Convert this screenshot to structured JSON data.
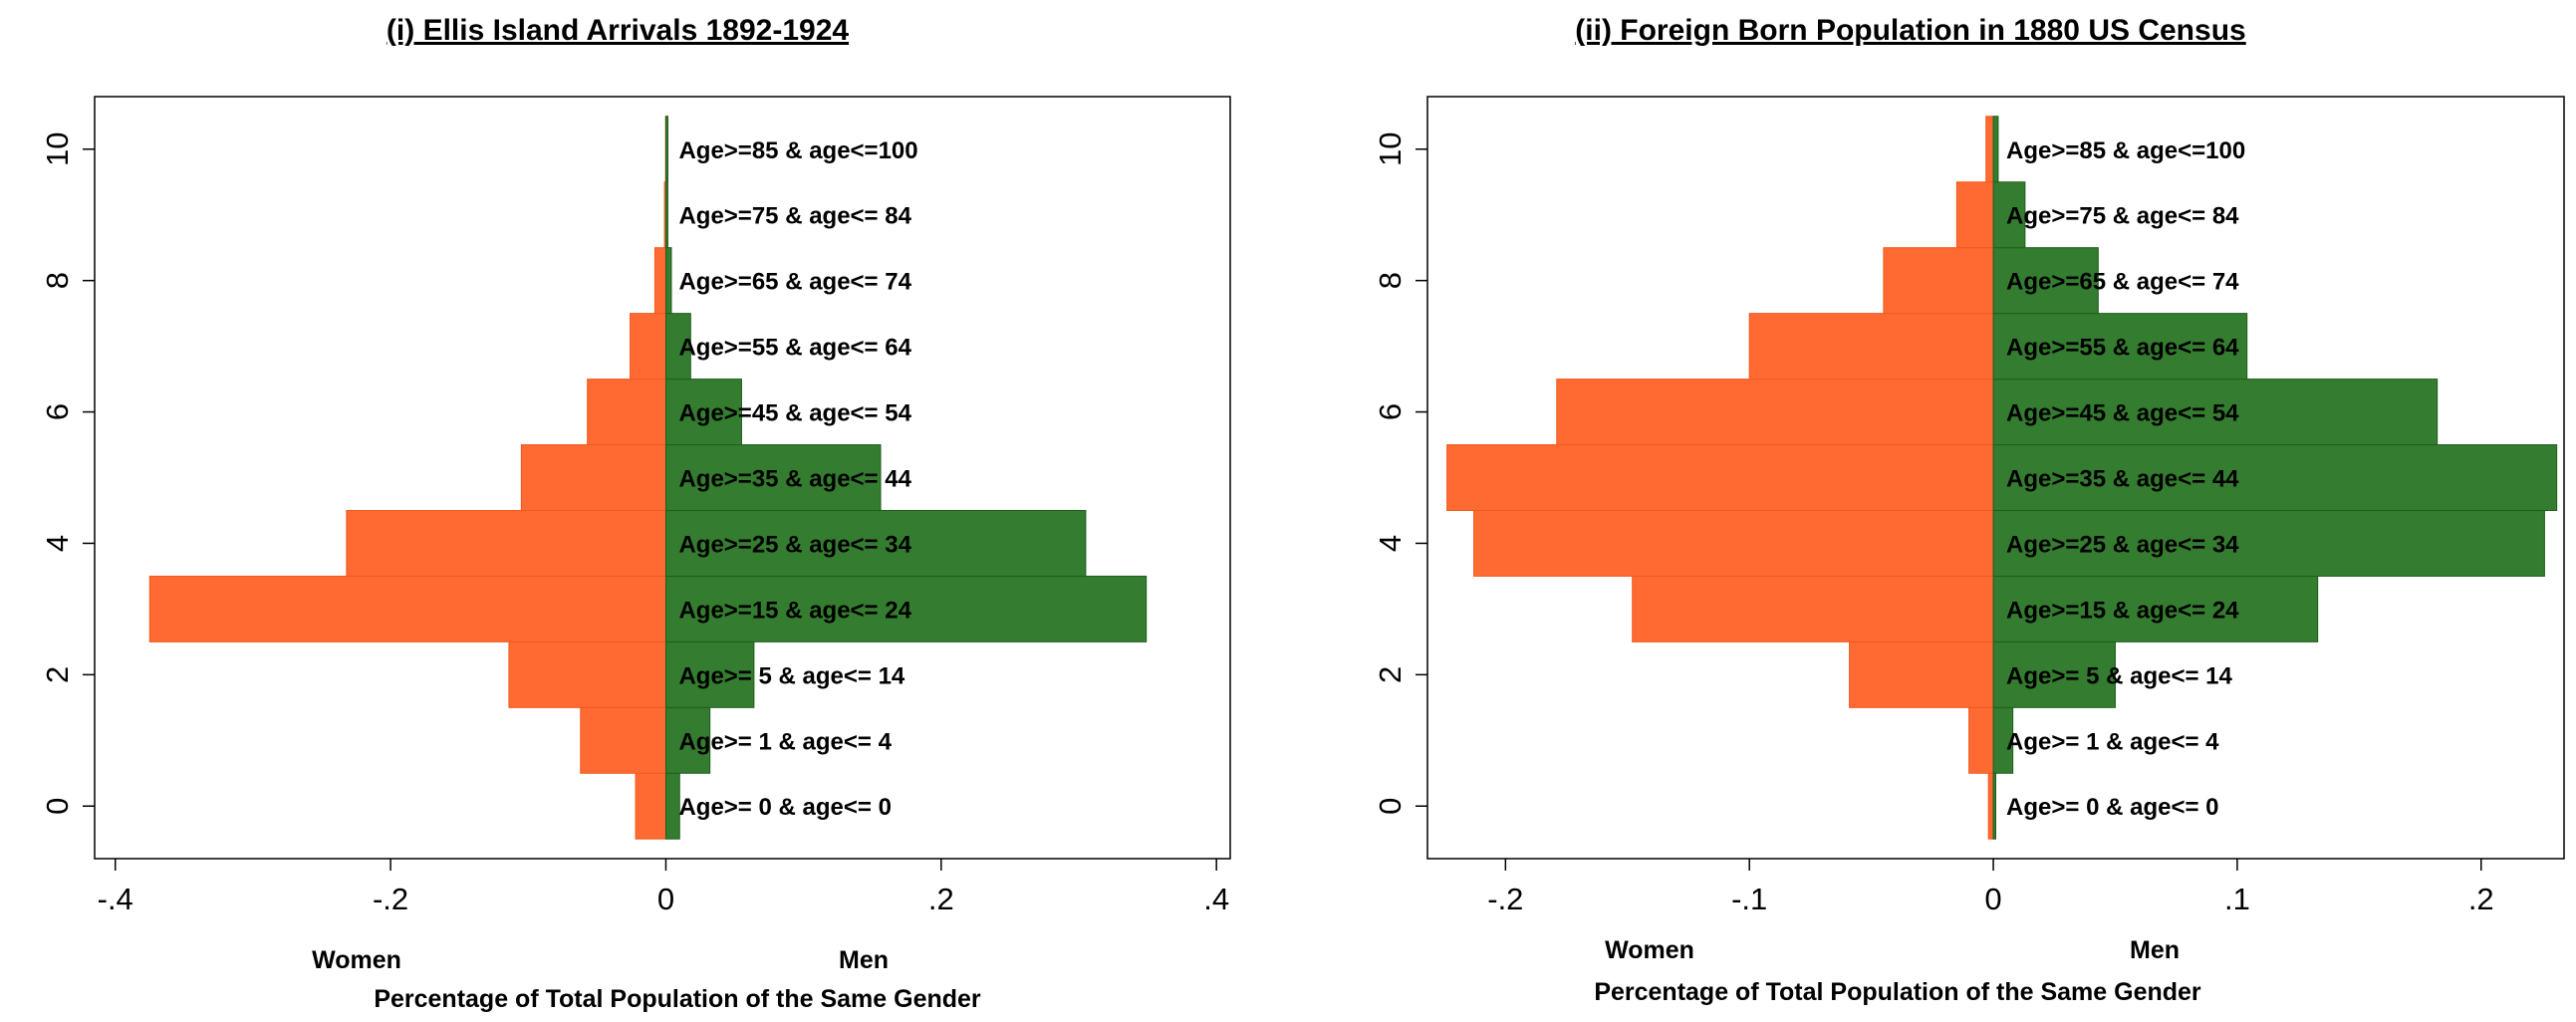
{
  "colors": {
    "women": "#ff6a33",
    "men": "#347c2f",
    "women_edge": "#f05a1e",
    "men_edge": "#1f5e1d"
  },
  "chart_data": [
    {
      "type": "bar",
      "orientation": "horizontal",
      "title": "(i) Ellis Island Arrivals 1892-1924",
      "xlabel": "Percentage of Total Population of the Same Gender",
      "women_label": "Women",
      "men_label": "Men",
      "xlim": [
        -0.415,
        0.41
      ],
      "ylim": [
        -0.8,
        10.8
      ],
      "xticks": [
        -0.4,
        -0.2,
        0,
        0.2,
        0.4
      ],
      "xtick_labels": [
        "-.4",
        "-.2",
        "0",
        ".2",
        ".4"
      ],
      "yticks": [
        0,
        2,
        4,
        6,
        8,
        10
      ],
      "ytick_labels": [
        "0",
        "2",
        "4",
        "6",
        "8",
        "10"
      ],
      "categories": [
        {
          "y": 0,
          "label": "Age>= 0 & age<=  0",
          "women": -0.022,
          "men": 0.01
        },
        {
          "y": 1,
          "label": "Age>= 1 & age<=  4",
          "women": -0.062,
          "men": 0.032
        },
        {
          "y": 2,
          "label": "Age>= 5 & age<= 14",
          "women": -0.114,
          "men": 0.064
        },
        {
          "y": 3,
          "label": "Age>=15 & age<= 24",
          "women": -0.375,
          "men": 0.349
        },
        {
          "y": 4,
          "label": "Age>=25 & age<= 34",
          "women": -0.232,
          "men": 0.305
        },
        {
          "y": 5,
          "label": "Age>=35 & age<= 44",
          "women": -0.105,
          "men": 0.156
        },
        {
          "y": 6,
          "label": "Age>=45 & age<= 54",
          "women": -0.057,
          "men": 0.055
        },
        {
          "y": 7,
          "label": "Age>=55 & age<= 64",
          "women": -0.026,
          "men": 0.018
        },
        {
          "y": 8,
          "label": "Age>=65 & age<= 74",
          "women": -0.008,
          "men": 0.004
        },
        {
          "y": 9,
          "label": "Age>=75 & age<= 84",
          "women": -0.001,
          "men": 0.0005
        },
        {
          "y": 10,
          "label": "Age>=85 & age<=100",
          "women": -0.0002,
          "men": 0.0001
        }
      ]
    },
    {
      "type": "bar",
      "orientation": "horizontal",
      "title": "(ii) Foreign Born Population in 1880 US Census",
      "xlabel": "Percentage of Total Population of the Same Gender",
      "women_label": "Women",
      "men_label": "Men",
      "xlim": [
        -0.232,
        0.234
      ],
      "ylim": [
        -0.8,
        10.8
      ],
      "xticks": [
        -0.2,
        -0.1,
        0,
        0.1,
        0.2
      ],
      "xtick_labels": [
        "-.2",
        "-.1",
        "0",
        ".1",
        ".2"
      ],
      "yticks": [
        0,
        2,
        4,
        6,
        8,
        10
      ],
      "ytick_labels": [
        "0",
        "2",
        "4",
        "6",
        "8",
        "10"
      ],
      "categories": [
        {
          "y": 0,
          "label": "Age>= 0 & age<=  0",
          "women": -0.002,
          "men": 0.001
        },
        {
          "y": 1,
          "label": "Age>= 1 & age<=  4",
          "women": -0.01,
          "men": 0.008
        },
        {
          "y": 2,
          "label": "Age>= 5 & age<= 14",
          "women": -0.059,
          "men": 0.05
        },
        {
          "y": 3,
          "label": "Age>=15 & age<= 24",
          "women": -0.148,
          "men": 0.133
        },
        {
          "y": 4,
          "label": "Age>=25 & age<= 34",
          "women": -0.213,
          "men": 0.226
        },
        {
          "y": 5,
          "label": "Age>=35 & age<= 44",
          "women": -0.224,
          "men": 0.231
        },
        {
          "y": 6,
          "label": "Age>=45 & age<= 54",
          "women": -0.179,
          "men": 0.182
        },
        {
          "y": 7,
          "label": "Age>=55 & age<= 64",
          "women": -0.1,
          "men": 0.104
        },
        {
          "y": 8,
          "label": "Age>=65 & age<= 74",
          "women": -0.045,
          "men": 0.043
        },
        {
          "y": 9,
          "label": "Age>=75 & age<= 84",
          "women": -0.015,
          "men": 0.013
        },
        {
          "y": 10,
          "label": "Age>=85 & age<=100",
          "women": -0.003,
          "men": 0.002
        }
      ]
    }
  ]
}
